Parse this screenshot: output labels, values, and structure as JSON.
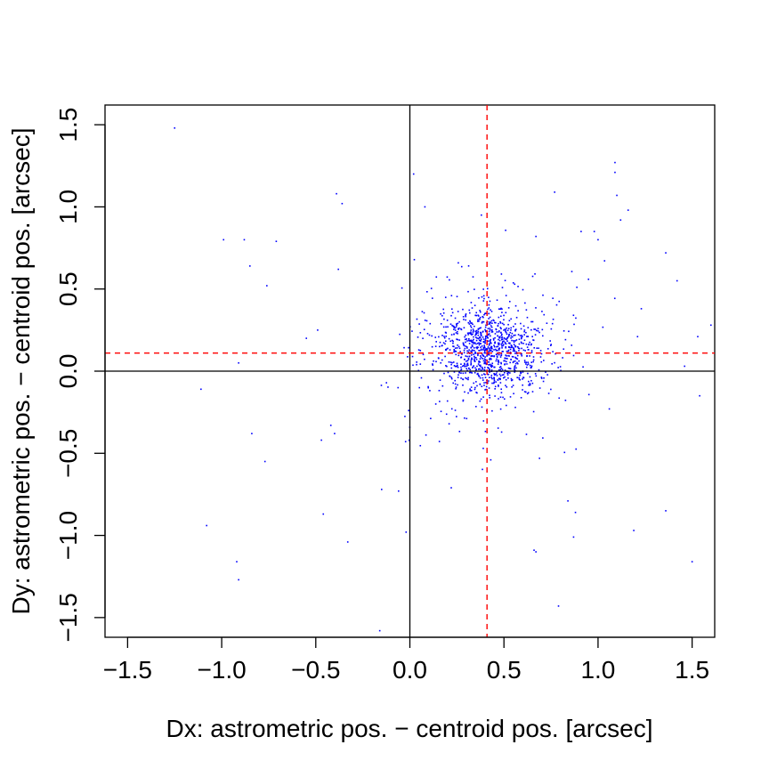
{
  "chart_data": {
    "type": "scatter",
    "xlabel": "Dx: astrometric pos. − centroid pos. [arcsec]",
    "ylabel": "Dy: astrometric pos. − centroid pos. [arcsec]",
    "xlim": [
      -1.62,
      1.62
    ],
    "ylim": [
      -1.62,
      1.62
    ],
    "x_ticks": [
      -1.5,
      -1.0,
      -0.5,
      0.0,
      0.5,
      1.0,
      1.5
    ],
    "x_tick_labels": [
      "−1.5",
      "−1.0",
      "−0.5",
      "0.0",
      "0.5",
      "1.0",
      "1.5"
    ],
    "y_ticks": [
      -1.5,
      -1.0,
      -0.5,
      0.0,
      0.5,
      1.0,
      1.5
    ],
    "y_tick_labels": [
      "−1.5",
      "−1.0",
      "−0.5",
      "0.0",
      "0.5",
      "1.0",
      "1.5"
    ],
    "grid": false,
    "legend": "none",
    "colors": {
      "points": "#0000ff",
      "reference_lines": "#000000",
      "mean_lines": "#ff0000"
    },
    "reference_lines": {
      "x": 0.0,
      "y": 0.0
    },
    "mean_lines": {
      "x": 0.41,
      "y": 0.11,
      "style": "dashed"
    },
    "dense_cluster": {
      "center": [
        0.42,
        0.12
      ],
      "sd": [
        0.13,
        0.13
      ],
      "count": 1150
    },
    "outliers": [
      [
        -1.25,
        1.48
      ],
      [
        -0.99,
        0.8
      ],
      [
        -0.88,
        0.8
      ],
      [
        -0.85,
        0.64
      ],
      [
        -0.71,
        0.79
      ],
      [
        -0.76,
        0.52
      ],
      [
        -0.39,
        1.08
      ],
      [
        -0.36,
        1.02
      ],
      [
        -0.38,
        0.62
      ],
      [
        -0.91,
        0.05
      ],
      [
        -1.11,
        -0.11
      ],
      [
        -1.08,
        -0.94
      ],
      [
        -0.92,
        -1.16
      ],
      [
        -0.91,
        -1.27
      ],
      [
        -0.84,
        -0.38
      ],
      [
        -0.77,
        -0.55
      ],
      [
        -0.55,
        0.2
      ],
      [
        -0.49,
        0.25
      ],
      [
        -0.47,
        -0.42
      ],
      [
        -0.46,
        -0.87
      ],
      [
        -0.42,
        -0.33
      ],
      [
        -0.4,
        -0.38
      ],
      [
        -0.33,
        -1.04
      ],
      [
        -0.16,
        -1.58
      ],
      [
        -0.15,
        -0.72
      ],
      [
        -0.06,
        -0.73
      ],
      [
        -0.02,
        -0.98
      ],
      [
        0.02,
        1.2
      ],
      [
        0.08,
        1.0
      ],
      [
        0.38,
        0.95
      ],
      [
        0.22,
        -0.71
      ],
      [
        0.39,
        -0.47
      ],
      [
        0.43,
        -0.54
      ],
      [
        0.66,
        -1.09
      ],
      [
        0.67,
        -1.1
      ],
      [
        0.67,
        0.82
      ],
      [
        0.79,
        -1.43
      ],
      [
        0.84,
        -0.79
      ],
      [
        0.87,
        -1.01
      ],
      [
        0.88,
        -0.86
      ],
      [
        0.91,
        0.85
      ],
      [
        0.98,
        0.85
      ],
      [
        1.0,
        0.8
      ],
      [
        1.09,
        1.27
      ],
      [
        1.09,
        1.21
      ],
      [
        1.1,
        1.07
      ],
      [
        1.12,
        0.92
      ],
      [
        1.16,
        0.98
      ],
      [
        1.19,
        -0.97
      ],
      [
        1.23,
        0.38
      ],
      [
        1.36,
        0.72
      ],
      [
        1.36,
        -0.85
      ],
      [
        1.42,
        0.55
      ],
      [
        1.46,
        0.03
      ],
      [
        1.5,
        -1.16
      ],
      [
        1.54,
        -0.15
      ],
      [
        1.53,
        0.21
      ],
      [
        1.6,
        0.28
      ],
      [
        1.21,
        0.21
      ],
      [
        1.06,
        -0.23
      ]
    ]
  }
}
